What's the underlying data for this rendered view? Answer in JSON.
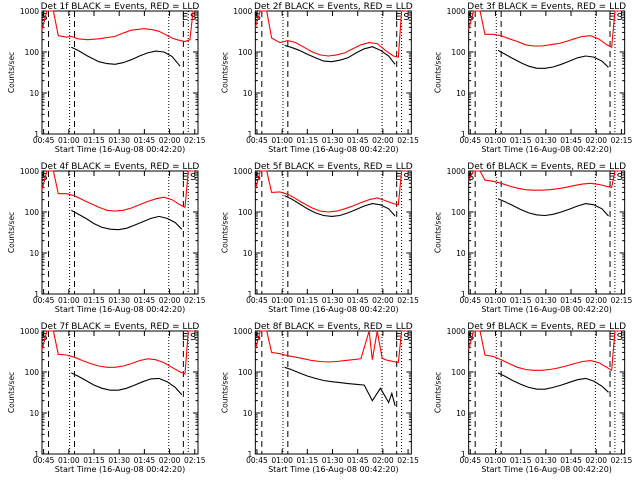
{
  "chart_data": [
    {
      "type": "line",
      "title": "Det 1f BLACK = Events, RED = LLD",
      "xlabel": "Start Time (16-Aug-08 00:42:20)",
      "ylabel": "Counts/sec",
      "x_ticks": [
        "00:45",
        "01:00",
        "01:15",
        "01:30",
        "01:45",
        "02:00",
        "02:15"
      ],
      "y_ticks": [
        "1",
        "10",
        "100",
        "1000"
      ],
      "ylim": [
        1,
        1000
      ],
      "y_scale": "log",
      "markers": [
        "S",
        "E",
        "S"
      ],
      "series": [
        {
          "color": "#ff0000",
          "x": [
            0,
            3,
            7,
            10,
            15,
            18,
            22,
            28,
            35,
            45,
            50,
            55,
            60,
            63,
            68,
            72,
            75,
            78,
            80,
            83,
            88,
            91,
            93,
            94
          ],
          "values": [
            350,
            1000,
            1000,
            250,
            230,
            240,
            210,
            200,
            210,
            240,
            290,
            340,
            360,
            370,
            350,
            320,
            280,
            240,
            220,
            200,
            180,
            200,
            1000,
            1000
          ]
        },
        {
          "color": "#000000",
          "x": [
            18,
            22,
            28,
            35,
            40,
            45,
            50,
            55,
            60,
            65,
            70,
            75,
            80,
            85
          ],
          "values": [
            130,
            110,
            80,
            58,
            52,
            50,
            55,
            65,
            80,
            95,
            105,
            100,
            78,
            45
          ]
        }
      ]
    },
    {
      "type": "line",
      "title": "Det 2f BLACK = Events, RED = LLD",
      "xlabel": "Start Time (16-Aug-08 00:42:20)",
      "ylabel": "Counts/sec",
      "x_ticks": [
        "00:45",
        "01:00",
        "01:15",
        "01:30",
        "01:45",
        "02:00",
        "02:15"
      ],
      "y_ticks": [
        "1",
        "10",
        "100",
        "1000"
      ],
      "ylim": [
        1,
        1000
      ],
      "y_scale": "log",
      "markers": [
        "S",
        "E",
        "S"
      ],
      "series": [
        {
          "color": "#ff0000",
          "x": [
            0,
            3,
            7,
            10,
            15,
            20,
            25,
            30,
            35,
            40,
            45,
            50,
            55,
            60,
            65,
            70,
            75,
            80,
            85,
            88,
            90,
            92,
            94
          ],
          "values": [
            400,
            1000,
            1000,
            220,
            170,
            190,
            170,
            130,
            100,
            85,
            80,
            85,
            95,
            120,
            150,
            170,
            160,
            110,
            80,
            75,
            1000,
            1000,
            1000
          ]
        },
        {
          "color": "#000000",
          "x": [
            18,
            22,
            27,
            32,
            37,
            42,
            47,
            52,
            57,
            62,
            67,
            72,
            77,
            82,
            86
          ],
          "values": [
            145,
            130,
            110,
            88,
            72,
            60,
            58,
            63,
            72,
            95,
            120,
            135,
            110,
            80,
            50
          ]
        }
      ]
    },
    {
      "type": "line",
      "title": "Det 3f BLACK = Events, RED = LLD",
      "xlabel": "Start Time (16-Aug-08 00:42:20)",
      "ylabel": "Counts/sec",
      "x_ticks": [
        "00:45",
        "01:00",
        "01:15",
        "01:30",
        "01:45",
        "02:00",
        "02:15"
      ],
      "y_ticks": [
        "1",
        "10",
        "100",
        "1000"
      ],
      "ylim": [
        1,
        1000
      ],
      "y_scale": "log",
      "markers": [
        "S",
        "E",
        "S"
      ],
      "series": [
        {
          "color": "#ff0000",
          "x": [
            0,
            3,
            7,
            10,
            15,
            20,
            25,
            30,
            35,
            40,
            45,
            50,
            55,
            60,
            65,
            70,
            75,
            80,
            85,
            88,
            90,
            92,
            94
          ],
          "values": [
            350,
            1000,
            1000,
            270,
            270,
            250,
            210,
            180,
            150,
            140,
            140,
            150,
            160,
            180,
            210,
            240,
            250,
            210,
            150,
            130,
            1000,
            1000,
            1000
          ]
        },
        {
          "color": "#000000",
          "x": [
            18,
            22,
            27,
            32,
            37,
            42,
            47,
            52,
            57,
            62,
            67,
            72,
            77,
            82,
            86
          ],
          "values": [
            110,
            90,
            70,
            55,
            45,
            40,
            40,
            43,
            50,
            60,
            72,
            80,
            75,
            60,
            42
          ]
        }
      ]
    },
    {
      "type": "line",
      "title": "Det 4f BLACK = Events, RED = LLD",
      "xlabel": "Start Time (16-Aug-08 00:42:20)",
      "ylabel": "Counts/sec",
      "x_ticks": [
        "00:45",
        "01:00",
        "01:15",
        "01:30",
        "01:45",
        "02:00",
        "02:15"
      ],
      "y_ticks": [
        "1",
        "10",
        "100",
        "1000"
      ],
      "ylim": [
        1,
        1000
      ],
      "y_scale": "log",
      "markers": [
        "S",
        "E",
        "S"
      ],
      "series": [
        {
          "color": "#ff0000",
          "x": [
            0,
            3,
            7,
            10,
            15,
            20,
            25,
            30,
            35,
            40,
            45,
            50,
            55,
            60,
            65,
            70,
            75,
            80,
            85,
            88,
            90,
            92,
            94
          ],
          "values": [
            350,
            1000,
            1000,
            280,
            280,
            250,
            200,
            160,
            130,
            110,
            105,
            110,
            125,
            150,
            180,
            210,
            230,
            200,
            150,
            130,
            1000,
            1000,
            1000
          ]
        },
        {
          "color": "#000000",
          "x": [
            18,
            22,
            27,
            32,
            37,
            42,
            47,
            52,
            57,
            62,
            67,
            72,
            77,
            82,
            86
          ],
          "values": [
            110,
            90,
            70,
            52,
            42,
            38,
            37,
            40,
            48,
            58,
            70,
            78,
            70,
            55,
            38
          ]
        }
      ]
    },
    {
      "type": "line",
      "title": "Det 5f BLACK = Events, RED = LLD",
      "xlabel": "Start Time (16-Aug-08 00:42:20)",
      "ylabel": "Counts/sec",
      "x_ticks": [
        "00:45",
        "01:00",
        "01:15",
        "01:30",
        "01:45",
        "02:00",
        "02:15"
      ],
      "y_ticks": [
        "1",
        "10",
        "100",
        "1000"
      ],
      "ylim": [
        1,
        1000
      ],
      "y_scale": "log",
      "markers": [
        "S",
        "E",
        "S"
      ],
      "series": [
        {
          "color": "#ff0000",
          "x": [
            0,
            3,
            7,
            10,
            15,
            20,
            25,
            30,
            35,
            40,
            45,
            50,
            55,
            60,
            65,
            70,
            75,
            80,
            85,
            88,
            90,
            92,
            94
          ],
          "values": [
            350,
            1000,
            1000,
            300,
            310,
            270,
            210,
            160,
            125,
            105,
            100,
            105,
            120,
            140,
            170,
            200,
            220,
            190,
            160,
            150,
            1000,
            1000,
            1000
          ]
        },
        {
          "color": "#000000",
          "x": [
            18,
            22,
            27,
            32,
            37,
            42,
            47,
            52,
            57,
            62,
            67,
            72,
            77,
            82,
            86
          ],
          "values": [
            250,
            210,
            160,
            120,
            95,
            82,
            78,
            82,
            95,
            115,
            140,
            160,
            150,
            120,
            80
          ]
        }
      ]
    },
    {
      "type": "line",
      "title": "Det 6f BLACK = Events, RED = LLD",
      "xlabel": "Start Time (16-Aug-08 00:42:20)",
      "ylabel": "Counts/sec",
      "x_ticks": [
        "00:45",
        "01:00",
        "01:15",
        "01:30",
        "01:45",
        "02:00",
        "02:15"
      ],
      "y_ticks": [
        "1",
        "10",
        "100",
        "1000"
      ],
      "ylim": [
        1,
        1000
      ],
      "y_scale": "log",
      "markers": [
        "S",
        "E",
        "S"
      ],
      "series": [
        {
          "color": "#ff0000",
          "x": [
            0,
            3,
            7,
            10,
            15,
            20,
            25,
            30,
            35,
            40,
            45,
            50,
            55,
            60,
            65,
            70,
            75,
            80,
            85,
            88,
            90,
            92,
            94
          ],
          "values": [
            600,
            1000,
            1000,
            600,
            560,
            500,
            430,
            380,
            350,
            340,
            340,
            350,
            370,
            400,
            440,
            480,
            500,
            470,
            420,
            400,
            1000,
            1000,
            1000
          ]
        },
        {
          "color": "#000000",
          "x": [
            18,
            22,
            27,
            32,
            37,
            42,
            47,
            52,
            57,
            62,
            67,
            72,
            77,
            82,
            86
          ],
          "values": [
            210,
            180,
            145,
            115,
            95,
            85,
            82,
            88,
            100,
            118,
            140,
            160,
            150,
            120,
            80
          ]
        }
      ]
    },
    {
      "type": "line",
      "title": "Det 7f BLACK = Events, RED = LLD",
      "xlabel": "Start Time (16-Aug-08 00:42:20)",
      "ylabel": "Counts/sec",
      "x_ticks": [
        "00:45",
        "01:00",
        "01:15",
        "01:30",
        "01:45",
        "02:00",
        "02:15"
      ],
      "y_ticks": [
        "1",
        "10",
        "100",
        "1000"
      ],
      "ylim": [
        1,
        1000
      ],
      "y_scale": "log",
      "markers": [
        "S",
        "E",
        "S"
      ],
      "series": [
        {
          "color": "#ff0000",
          "x": [
            0,
            3,
            7,
            10,
            15,
            20,
            25,
            30,
            35,
            40,
            45,
            50,
            55,
            60,
            65,
            70,
            75,
            80,
            85,
            88,
            90,
            92,
            94
          ],
          "values": [
            350,
            1000,
            1000,
            270,
            260,
            230,
            190,
            160,
            140,
            130,
            130,
            140,
            160,
            190,
            210,
            200,
            170,
            130,
            100,
            90,
            1000,
            1000,
            1000
          ]
        },
        {
          "color": "#000000",
          "x": [
            18,
            22,
            27,
            32,
            37,
            42,
            47,
            52,
            57,
            62,
            67,
            72,
            77,
            82,
            86
          ],
          "values": [
            95,
            80,
            62,
            48,
            40,
            36,
            36,
            40,
            48,
            58,
            68,
            70,
            58,
            42,
            28
          ]
        }
      ]
    },
    {
      "type": "line",
      "title": "Det 8f BLACK = Events, RED = LLD",
      "xlabel": "Start Time (16-Aug-08 00:42:20)",
      "ylabel": "Counts/sec",
      "x_ticks": [
        "00:45",
        "01:00",
        "01:15",
        "01:30",
        "01:45",
        "02:00",
        "02:15"
      ],
      "y_ticks": [
        "1",
        "10",
        "100",
        "1000"
      ],
      "ylim": [
        1,
        1000
      ],
      "y_scale": "log",
      "markers": [
        "S",
        "E",
        "S"
      ],
      "series": [
        {
          "color": "#ff0000",
          "x": [
            0,
            3,
            7,
            10,
            15,
            20,
            25,
            30,
            35,
            40,
            45,
            50,
            55,
            60,
            65,
            70,
            72,
            75,
            78,
            80,
            82,
            85,
            88,
            90,
            92,
            94
          ],
          "values": [
            350,
            1000,
            1000,
            300,
            280,
            250,
            230,
            210,
            190,
            180,
            175,
            180,
            190,
            200,
            210,
            1000,
            200,
            1000,
            220,
            200,
            190,
            180,
            170,
            1000,
            1000,
            1000
          ]
        },
        {
          "color": "#000000",
          "x": [
            18,
            22,
            27,
            32,
            37,
            42,
            47,
            52,
            57,
            62,
            67,
            72,
            77,
            82,
            84,
            86
          ],
          "values": [
            130,
            115,
            95,
            80,
            70,
            62,
            58,
            55,
            52,
            50,
            48,
            20,
            40,
            18,
            30,
            15
          ]
        }
      ]
    },
    {
      "type": "line",
      "title": "Det 9f BLACK = Events, RED = LLD",
      "xlabel": "Start Time (16-Aug-08 00:42:20)",
      "ylabel": "Counts/sec",
      "x_ticks": [
        "00:45",
        "01:00",
        "01:15",
        "01:30",
        "01:45",
        "02:00",
        "02:15"
      ],
      "y_ticks": [
        "1",
        "10",
        "100",
        "1000"
      ],
      "ylim": [
        1,
        1000
      ],
      "y_scale": "log",
      "markers": [
        "S",
        "E",
        "S"
      ],
      "series": [
        {
          "color": "#ff0000",
          "x": [
            0,
            3,
            7,
            10,
            15,
            20,
            25,
            30,
            35,
            40,
            45,
            50,
            55,
            60,
            65,
            70,
            75,
            80,
            85,
            88,
            90,
            92,
            94
          ],
          "values": [
            350,
            1000,
            1000,
            260,
            240,
            200,
            160,
            130,
            115,
            110,
            110,
            115,
            125,
            140,
            160,
            180,
            190,
            170,
            130,
            110,
            1000,
            1000,
            1000
          ]
        },
        {
          "color": "#000000",
          "x": [
            18,
            22,
            27,
            32,
            37,
            42,
            47,
            52,
            57,
            62,
            67,
            72,
            77,
            82,
            86
          ],
          "values": [
            95,
            80,
            62,
            50,
            42,
            38,
            38,
            42,
            48,
            56,
            65,
            70,
            60,
            45,
            32
          ]
        }
      ]
    }
  ]
}
